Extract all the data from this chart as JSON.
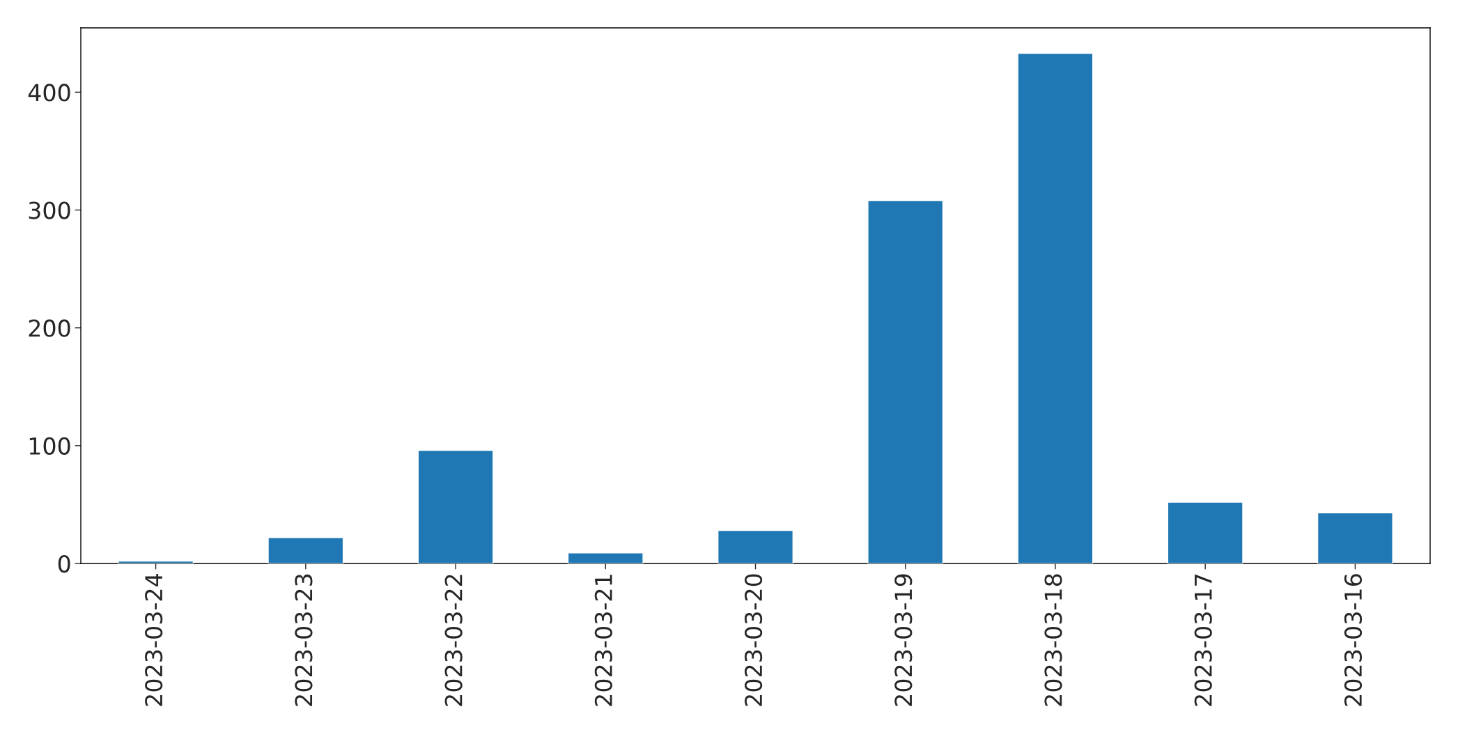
{
  "chart_data": {
    "type": "bar",
    "categories": [
      "2023-03-24",
      "2023-03-23",
      "2023-03-22",
      "2023-03-21",
      "2023-03-20",
      "2023-03-19",
      "2023-03-18",
      "2023-03-17",
      "2023-03-16"
    ],
    "values": [
      2,
      22,
      96,
      9,
      28,
      308,
      433,
      52,
      43
    ],
    "color": "#1f77b4",
    "ylim": [
      0,
      454.6
    ],
    "yticks": [
      0,
      100,
      200,
      300,
      400
    ],
    "grid": false,
    "legend": false
  }
}
